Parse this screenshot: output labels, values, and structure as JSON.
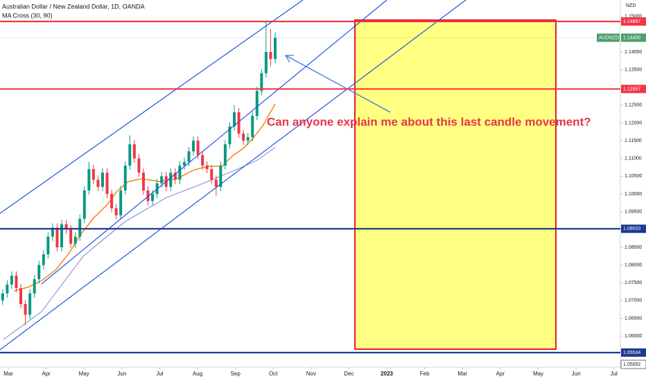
{
  "chart_data": {
    "type": "candlestick",
    "title": "Australian Dollar / New Zealand Dollar, 1D, OANDA",
    "subtitle": "MA Cross (30, 90)",
    "currency": "NZD",
    "up_color": "#089981",
    "down_color": "#f23645",
    "x": [
      0.85,
      0.97,
      1.09,
      1.21,
      1.33,
      1.45,
      1.57,
      1.69,
      1.81,
      1.93,
      2.05,
      2.17,
      2.29,
      2.41,
      2.53,
      2.65,
      2.77,
      2.89,
      3.01,
      3.13,
      3.25,
      3.37,
      3.49,
      3.61,
      3.73,
      3.85,
      3.97,
      4.09,
      4.21,
      4.33,
      4.45,
      4.57,
      4.69,
      4.81,
      4.93,
      5.05,
      5.17,
      5.29,
      5.41,
      5.53,
      5.65,
      5.77,
      5.89,
      6.01,
      6.13,
      6.25,
      6.37,
      6.49,
      6.61,
      6.73,
      6.85,
      6.97,
      7.09,
      7.21,
      7.33,
      7.45,
      7.57,
      7.69,
      7.81,
      7.93,
      8.05
    ],
    "open": [
      1.07,
      1.072,
      1.0745,
      1.077,
      1.0735,
      1.069,
      1.066,
      1.072,
      1.076,
      1.08,
      1.083,
      1.088,
      1.0905,
      1.085,
      1.0915,
      1.09,
      1.086,
      1.088,
      1.093,
      1.101,
      1.107,
      1.104,
      1.102,
      1.106,
      1.1,
      1.096,
      1.094,
      1.101,
      1.108,
      1.114,
      1.11,
      1.106,
      1.101,
      1.098,
      1.1,
      1.103,
      1.105,
      1.102,
      1.106,
      1.104,
      1.108,
      1.109,
      1.112,
      1.115,
      1.111,
      1.108,
      1.107,
      1.104,
      1.102,
      1.108,
      1.114,
      1.119,
      1.123,
      1.117,
      1.115,
      1.116,
      1.122,
      1.129,
      1.134,
      1.14,
      1.138
    ],
    "high": [
      1.0732,
      1.0757,
      1.0782,
      1.0782,
      1.0747,
      1.0702,
      1.0732,
      1.0772,
      1.0812,
      1.0842,
      1.0892,
      1.0917,
      1.0917,
      1.0927,
      1.0927,
      1.0912,
      1.0892,
      1.0942,
      1.1022,
      1.109,
      1.1082,
      1.1052,
      1.1072,
      1.1072,
      1.1012,
      1.0972,
      1.1022,
      1.1092,
      1.1165,
      1.1152,
      1.1112,
      1.1072,
      1.1022,
      1.1012,
      1.1042,
      1.1062,
      1.1062,
      1.1072,
      1.1072,
      1.1092,
      1.1102,
      1.1132,
      1.1162,
      1.1162,
      1.1122,
      1.1092,
      1.1082,
      1.1052,
      1.1092,
      1.1152,
      1.1202,
      1.125,
      1.1242,
      1.1182,
      1.1172,
      1.1232,
      1.1302,
      1.1352,
      1.1486,
      1.1465,
      1.1455
    ],
    "low": [
      1.0688,
      1.0708,
      1.0733,
      1.0723,
      1.0678,
      1.063,
      1.0648,
      1.0708,
      1.0748,
      1.0788,
      1.0818,
      1.0868,
      1.0838,
      1.0838,
      1.0888,
      1.0848,
      1.0848,
      1.0868,
      1.0918,
      1.0998,
      1.1028,
      1.1008,
      1.1008,
      1.0988,
      1.0948,
      1.0928,
      1.0928,
      1.0998,
      1.1068,
      1.1088,
      1.1048,
      1.0998,
      1.0968,
      1.0968,
      1.0988,
      1.1018,
      1.1008,
      1.1008,
      1.1028,
      1.1028,
      1.1068,
      1.1078,
      1.1108,
      1.1098,
      1.1068,
      1.1058,
      1.1028,
      1.0995,
      1.1008,
      1.1068,
      1.1128,
      1.1178,
      1.1158,
      1.1138,
      1.1138,
      1.1148,
      1.1208,
      1.1278,
      1.1328,
      1.136,
      1.1368
    ],
    "close": [
      1.072,
      1.0745,
      1.077,
      1.0735,
      1.069,
      1.066,
      1.072,
      1.076,
      1.08,
      1.083,
      1.088,
      1.0905,
      1.085,
      1.0915,
      1.09,
      1.086,
      1.088,
      1.093,
      1.101,
      1.107,
      1.104,
      1.102,
      1.106,
      1.1,
      1.096,
      1.094,
      1.101,
      1.108,
      1.114,
      1.11,
      1.106,
      1.101,
      1.098,
      1.1,
      1.103,
      1.105,
      1.102,
      1.106,
      1.104,
      1.108,
      1.109,
      1.112,
      1.115,
      1.111,
      1.108,
      1.107,
      1.104,
      1.102,
      1.108,
      1.114,
      1.119,
      1.123,
      1.117,
      1.115,
      1.116,
      1.122,
      1.129,
      1.134,
      1.14,
      1.138,
      1.144
    ],
    "series": [
      {
        "color": "#f57c00",
        "x": [
          1.15,
          1.51,
          1.88,
          2.25,
          2.61,
          2.89,
          3.25,
          3.62,
          3.89,
          4.17,
          4.53,
          4.99,
          5.45,
          5.91,
          6.27,
          6.64,
          6.92,
          7.19,
          7.46,
          7.74,
          8.05
        ],
        "values": [
          1.0727,
          1.0737,
          1.0756,
          1.0786,
          1.0834,
          1.0883,
          1.0932,
          1.0971,
          1.101,
          1.1035,
          1.1043,
          1.1035,
          1.1043,
          1.1068,
          1.1078,
          1.1078,
          1.1107,
          1.1127,
          1.1156,
          1.1195,
          1.1254
        ]
      },
      {
        "color": "#5c6bc0",
        "x": [
          0.87,
          1.88,
          2.98,
          4.08,
          5.18,
          6.27,
          7.01,
          7.56,
          8.05
        ],
        "values": [
          1.059,
          1.0669,
          1.0825,
          1.0922,
          1.099,
          1.1035,
          1.1068,
          1.1094,
          1.1131
        ]
      }
    ],
    "levels": [
      {
        "value": 1.14857,
        "color": "#f23645"
      },
      {
        "value": 1.12957,
        "color": "#f23645"
      },
      {
        "value": 1.0902,
        "label": "1.09020",
        "color": "#1c3a8f"
      },
      {
        "value": 1.05534,
        "color": "#1c3a8f"
      }
    ],
    "last_price": {
      "symbol": "AUDNZD",
      "value": 1.144,
      "label": "1.14400",
      "color": "#4f9e6f"
    },
    "scale_marker": 1.05052,
    "annotation": "Can anyone explain me about this last candle movement?",
    "xlim": [
      0.78,
      17.17
    ],
    "xticks": [
      {
        "value": 1,
        "label": "Mar"
      },
      {
        "value": 2,
        "label": "Apr"
      },
      {
        "value": 3,
        "label": "May"
      },
      {
        "value": 4,
        "label": "Jun"
      },
      {
        "value": 5,
        "label": "Jul"
      },
      {
        "value": 6,
        "label": "Aug"
      },
      {
        "value": 7,
        "label": "Sep"
      },
      {
        "value": 8,
        "label": "Oct"
      },
      {
        "value": 9,
        "label": "Nov"
      },
      {
        "value": 10,
        "label": "Dec"
      },
      {
        "value": 11,
        "label": "2023"
      },
      {
        "value": 12,
        "label": "Feb"
      },
      {
        "value": 13,
        "label": "Mar"
      },
      {
        "value": 14,
        "label": "Apr"
      },
      {
        "value": 15,
        "label": "May"
      },
      {
        "value": 16,
        "label": "Jun"
      },
      {
        "value": 17,
        "label": "Jul"
      }
    ],
    "ylim": [
      1.05124,
      1.15462
    ],
    "yticks": [
      {
        "value": 1.15,
        "label": "1.15000"
      },
      {
        "value": 1.14,
        "label": "1.14000"
      },
      {
        "value": 1.135,
        "label": "1.13500"
      },
      {
        "value": 1.125,
        "label": "1.12500"
      },
      {
        "value": 1.12,
        "label": "1.12000"
      },
      {
        "value": 1.115,
        "label": "1.11500"
      },
      {
        "value": 1.11,
        "label": "1.11000"
      },
      {
        "value": 1.105,
        "label": "1.10500"
      },
      {
        "value": 1.1,
        "label": "1.10000"
      },
      {
        "value": 1.095,
        "label": "1.09500"
      },
      {
        "value": 1.085,
        "label": "1.08500"
      },
      {
        "value": 1.08,
        "label": "1.08000"
      },
      {
        "value": 1.075,
        "label": "1.07500"
      },
      {
        "value": 1.07,
        "label": "1.07000"
      },
      {
        "value": 1.065,
        "label": "1.06500"
      },
      {
        "value": 1.06,
        "label": "1.06000"
      }
    ]
  }
}
